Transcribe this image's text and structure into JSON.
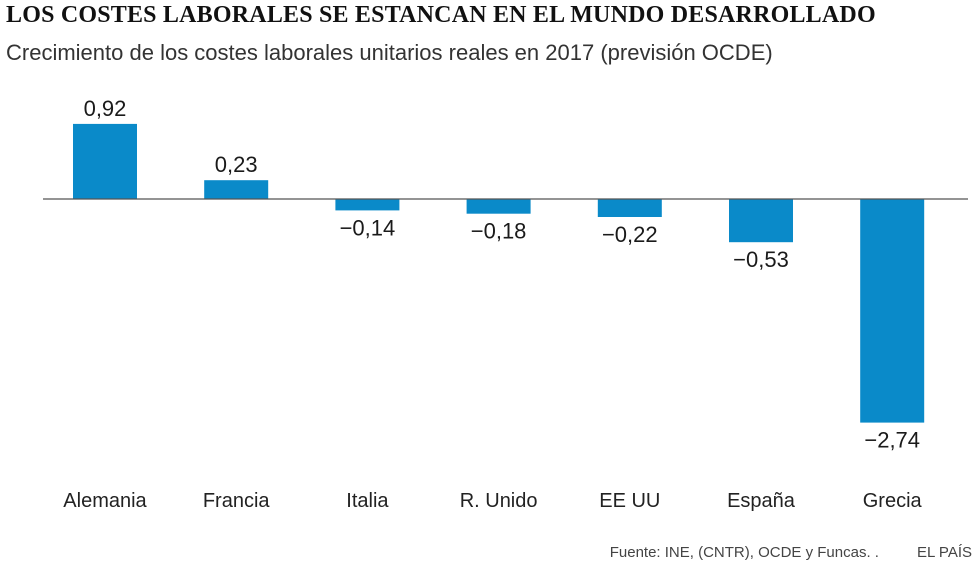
{
  "header": {
    "title": "LOS COSTES LABORALES SE ESTANCAN EN EL MUNDO DESARROLLADO",
    "subtitle": "Crecimiento de los costes laborales unitarios reales en 2017 (previsión OCDE)"
  },
  "footer": {
    "source": "Fuente: INE,  (CNTR), OCDE y Funcas. .",
    "brand": "EL PAÍS"
  },
  "colors": {
    "bar": "#0a8ac9",
    "axis": "#555555",
    "text": "#1a1a1a"
  },
  "chart_data": {
    "type": "bar",
    "title": "LOS COSTES LABORALES SE ESTANCAN EN EL MUNDO DESARROLLADO",
    "subtitle": "Crecimiento de los costes laborales unitarios reales en 2017 (previsión OCDE)",
    "categories": [
      "Alemania",
      "Francia",
      "Italia",
      "R. Unido",
      "EE UU",
      "España",
      "Grecia"
    ],
    "values": [
      0.92,
      0.23,
      -0.14,
      -0.18,
      -0.22,
      -0.53,
      -2.74
    ],
    "labels": [
      "0,92",
      "0,23",
      "−0,14",
      "−0,18",
      "−0,22",
      "−0,53",
      "−2,74"
    ],
    "xlabel": "",
    "ylabel": "",
    "ylim": [
      -2.74,
      0.92
    ],
    "grid": false,
    "legend": "none"
  }
}
